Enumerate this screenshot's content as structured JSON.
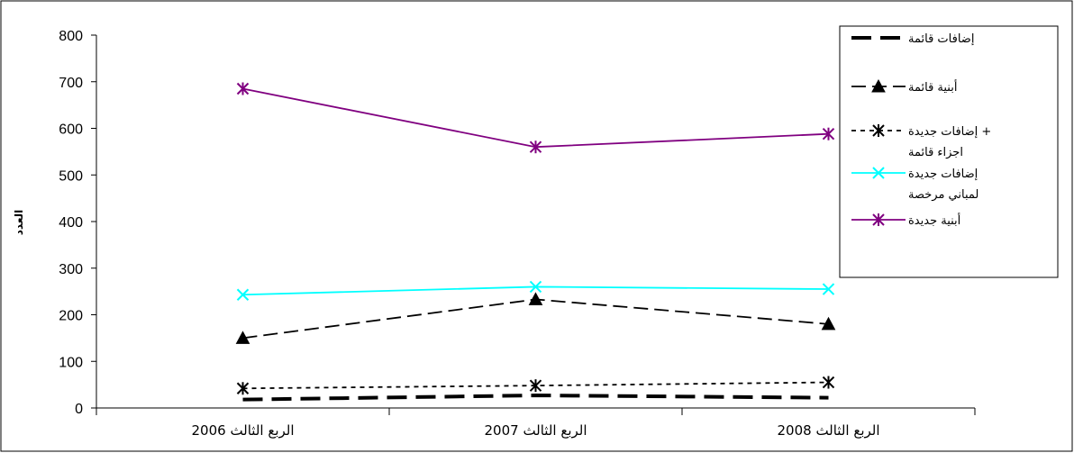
{
  "chart_data": {
    "type": "line",
    "title": "",
    "xlabel": "",
    "ylabel": "العدد",
    "ylim": [
      0,
      800
    ],
    "yticks": [
      0,
      100,
      200,
      300,
      400,
      500,
      600,
      700,
      800
    ],
    "grid": false,
    "legend_position": "top-right",
    "categories": [
      "الربع الثالث 2006",
      "الربع الثالث 2007",
      "الربع الثالث 2008"
    ],
    "series": [
      {
        "name": "إضافات قائمة",
        "values": [
          18,
          27,
          22
        ],
        "color": "#000000",
        "line_style": "long-dash-thick",
        "marker": "none"
      },
      {
        "name": "أبنية قائمة",
        "values": [
          150,
          233,
          180
        ],
        "color": "#000000",
        "line_style": "dash",
        "marker": "triangle"
      },
      {
        "name": "إضافات جديدة + اجزاء قائمة",
        "name_lines": [
          "إضافات جديدة +",
          "اجزاء قائمة"
        ],
        "values": [
          42,
          48,
          55
        ],
        "color": "#000000",
        "line_style": "dot",
        "marker": "asterisk"
      },
      {
        "name": "إضافات جديدة لمباني مرخصة",
        "name_lines": [
          "إضافات جديدة",
          "لمباني مرخصة"
        ],
        "values": [
          243,
          260,
          255
        ],
        "color": "#00FFFF",
        "line_style": "solid",
        "marker": "x"
      },
      {
        "name": "أبنية  جديدة",
        "values": [
          685,
          560,
          588
        ],
        "color": "#800080",
        "line_style": "solid",
        "marker": "star"
      }
    ]
  }
}
